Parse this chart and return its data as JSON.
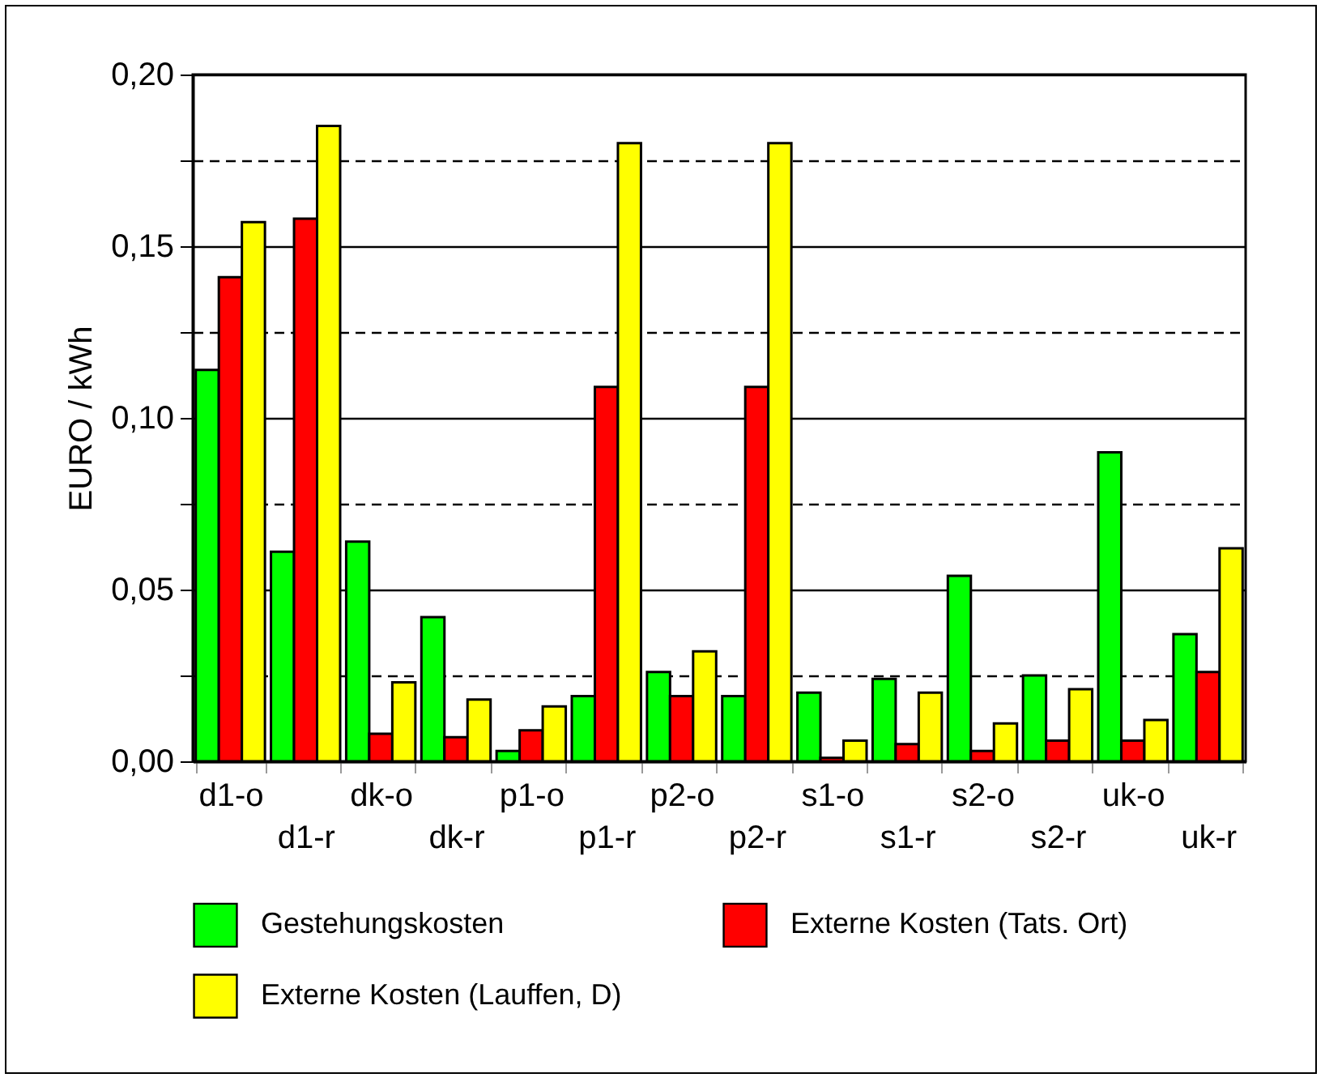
{
  "chart_data": {
    "type": "bar",
    "ylabel": "EURO / kWh",
    "categories": [
      "d1-o",
      "d1-r",
      "dk-o",
      "dk-r",
      "p1-o",
      "p1-r",
      "p2-o",
      "p2-r",
      "s1-o",
      "s1-r",
      "s2-o",
      "s2-r",
      "uk-o",
      "uk-r"
    ],
    "series": [
      {
        "name": "Gestehungskosten",
        "color": "#00ff00",
        "values": [
          0.114,
          0.061,
          0.064,
          0.042,
          0.003,
          0.019,
          0.026,
          0.019,
          0.02,
          0.024,
          0.054,
          0.025,
          0.09,
          0.037
        ]
      },
      {
        "name": "Externe Kosten (Tats. Ort)",
        "color": "#ff0000",
        "values": [
          0.141,
          0.158,
          0.008,
          0.007,
          0.009,
          0.109,
          0.019,
          0.109,
          0.001,
          0.005,
          0.003,
          0.006,
          0.006,
          0.026
        ]
      },
      {
        "name": "Externe Kosten (Lauffen, D)",
        "color": "#ffff00",
        "values": [
          0.157,
          0.185,
          0.023,
          0.018,
          0.016,
          0.18,
          0.032,
          0.18,
          0.006,
          0.02,
          0.011,
          0.021,
          0.012,
          0.062
        ]
      }
    ],
    "ylim": [
      0,
      0.2
    ],
    "yticks": [
      "0,00",
      {
        "value": 0.025,
        "label": null
      },
      {
        "value": 0.05,
        "label": "0,05"
      },
      {
        "value": 0.075,
        "label": null
      },
      {
        "value": 0.1,
        "label": "0,10"
      },
      {
        "value": 0.125,
        "label": null
      },
      {
        "value": 0.15,
        "label": "0,15"
      },
      {
        "value": 0.175,
        "label": null
      },
      {
        "value": 0.2,
        "label": "0,20"
      }
    ],
    "grid": "y",
    "legend": "bottom"
  }
}
